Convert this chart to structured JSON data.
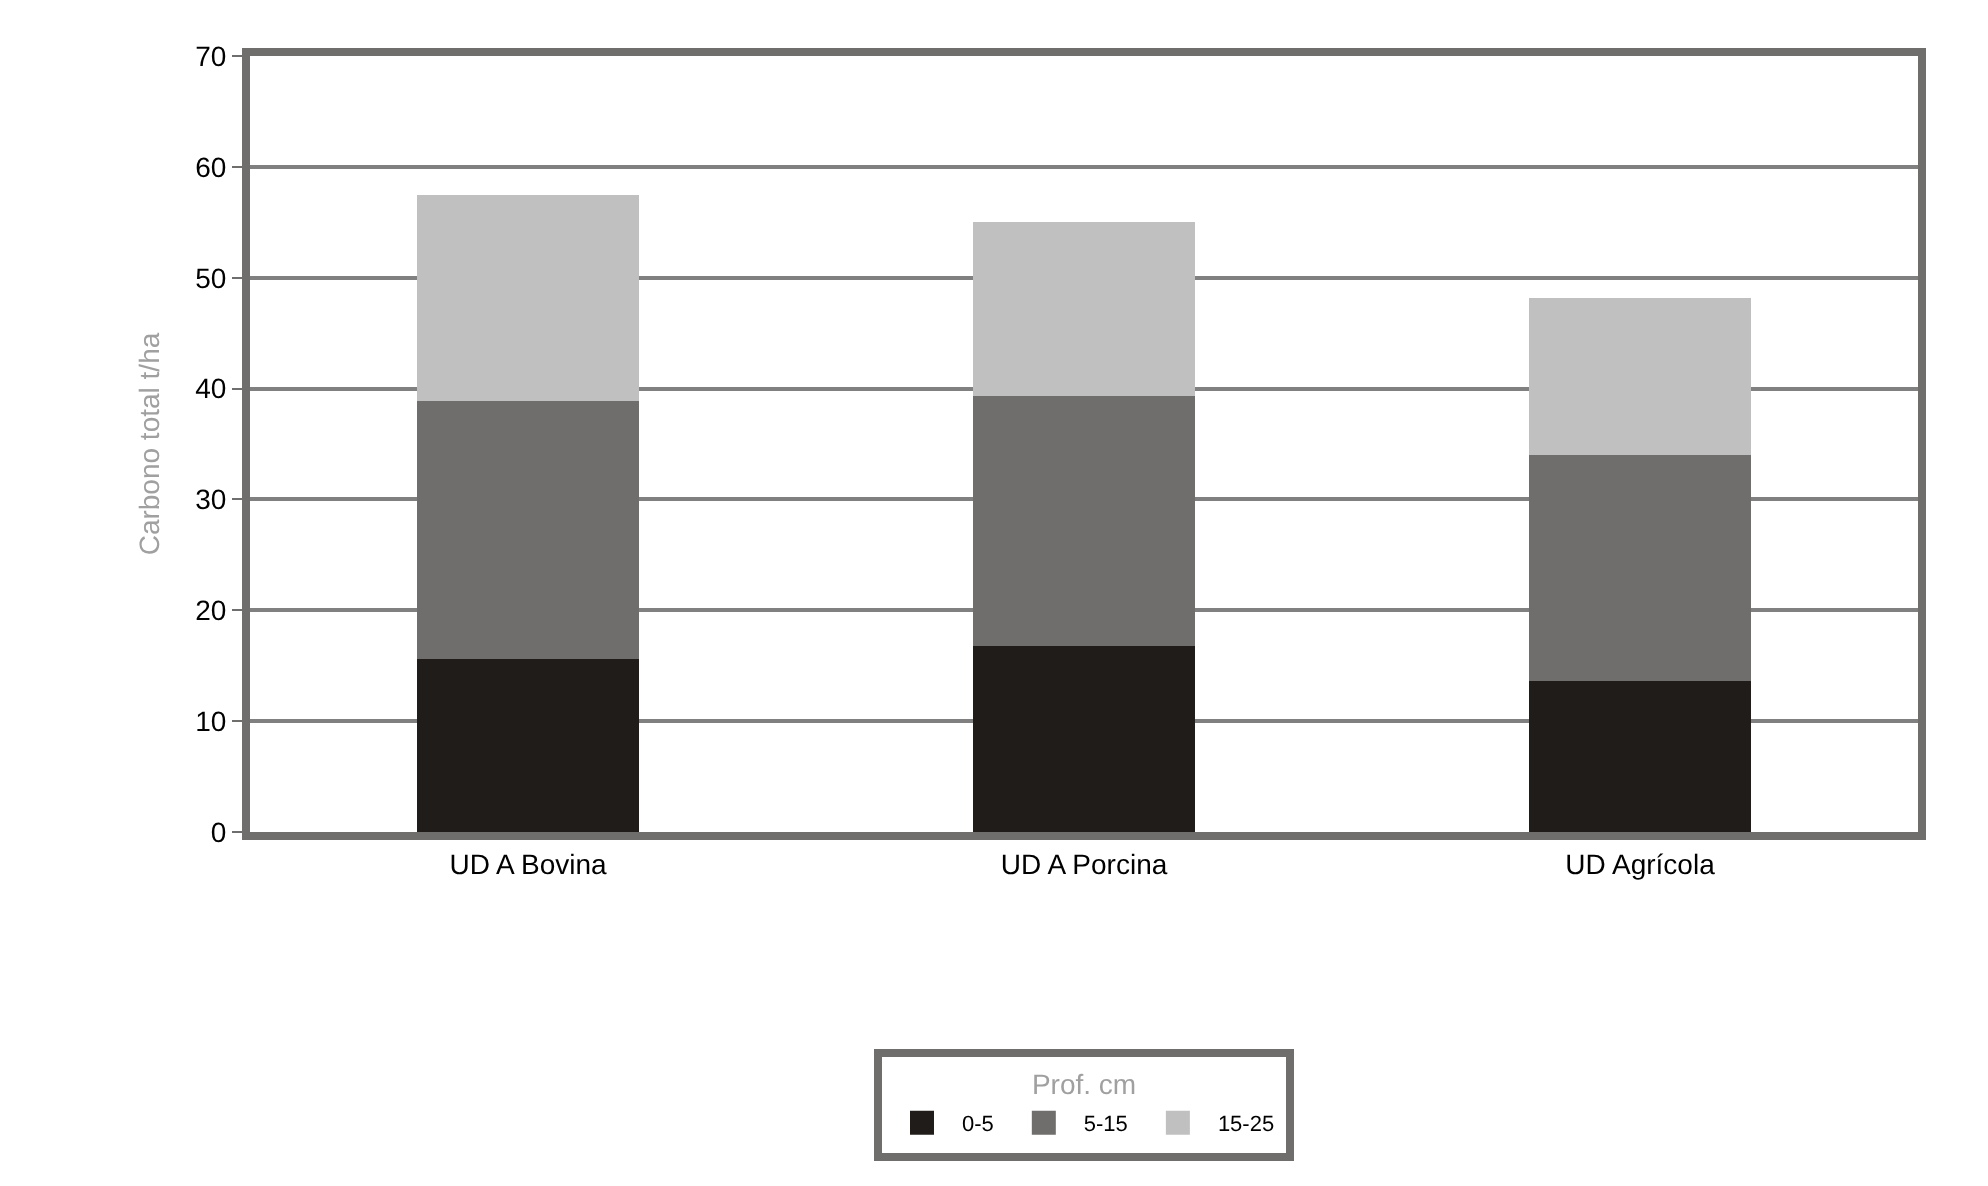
{
  "chart_data": {
    "type": "bar",
    "stacked": true,
    "ylabel": "Carbono total t/ha",
    "legend_title": "Prof. cm",
    "categories": [
      "UD A Bovina",
      "UD A Porcina",
      "UD Agrícola"
    ],
    "series": [
      {
        "name": "0-5",
        "color": "#201c19",
        "values": [
          15.6,
          16.8,
          13.6
        ]
      },
      {
        "name": "5-15",
        "color": "#6f6e6c",
        "values": [
          23.3,
          22.5,
          20.4
        ]
      },
      {
        "name": "15-25",
        "color": "#c0c0c0",
        "values": [
          18.6,
          15.7,
          14.2
        ]
      }
    ],
    "ylim": [
      0,
      70
    ],
    "yticks": [
      0,
      10,
      20,
      30,
      40,
      50,
      60,
      70
    ],
    "grid": "y",
    "legend": "bottom"
  }
}
